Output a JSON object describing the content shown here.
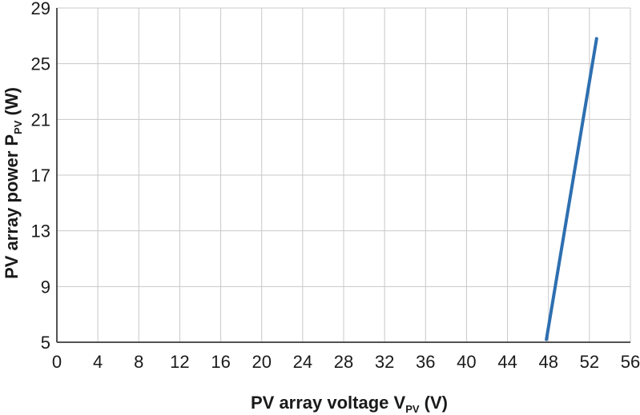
{
  "chart_data": {
    "type": "line",
    "title": "",
    "xlabel": {
      "main": "PV array voltage V",
      "sub": "PV",
      "suffix": " (V)"
    },
    "ylabel": {
      "main": "PV array power P",
      "sub": "PV",
      "suffix": " (W)"
    },
    "xlim": [
      0,
      56
    ],
    "ylim": [
      5,
      29
    ],
    "xticks": [
      0,
      4,
      8,
      12,
      16,
      20,
      24,
      28,
      32,
      36,
      40,
      44,
      48,
      52,
      56
    ],
    "yticks": [
      5,
      9,
      13,
      17,
      21,
      25,
      29
    ],
    "grid": true,
    "series": [
      {
        "color": "#2e6fb0",
        "x": [
          47.8,
          52.7
        ],
        "y": [
          5.2,
          26.8
        ]
      }
    ]
  }
}
